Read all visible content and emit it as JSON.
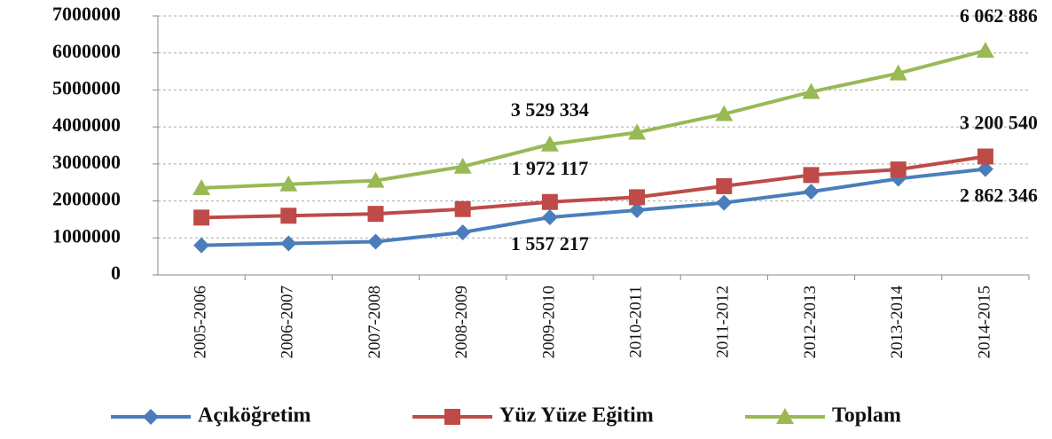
{
  "chart_data": {
    "type": "line",
    "categories": [
      "2005-2006",
      "2006-2007",
      "2007-2008",
      "2008-2009",
      "2009-2010",
      "2010-2011",
      "2011-2012",
      "2012-2013",
      "2013-2014",
      "2014-2015"
    ],
    "series": [
      {
        "name": "Açıköğretim",
        "color": "#4a7ebb",
        "marker": "diamond",
        "values": [
          800000,
          850000,
          900000,
          1150000,
          1557217,
          1750000,
          1950000,
          2250000,
          2600000,
          2862346
        ],
        "value_labels": [
          null,
          null,
          null,
          null,
          "1 557 217",
          null,
          null,
          null,
          null,
          "2 862 346"
        ]
      },
      {
        "name": "Yüz Yüze Eğitim",
        "color": "#be4b48",
        "marker": "square",
        "values": [
          1550000,
          1600000,
          1650000,
          1780000,
          1972117,
          2100000,
          2400000,
          2700000,
          2850000,
          3200540
        ],
        "value_labels": [
          null,
          null,
          null,
          null,
          "1 972 117",
          null,
          null,
          null,
          null,
          "3 200 540"
        ]
      },
      {
        "name": "Toplam",
        "color": "#98b954",
        "marker": "triangle",
        "values": [
          2350000,
          2450000,
          2550000,
          2930000,
          3529334,
          3850000,
          4350000,
          4950000,
          5450000,
          6062886
        ],
        "value_labels": [
          null,
          null,
          null,
          null,
          "3 529 334",
          null,
          null,
          null,
          null,
          "6 062 886"
        ]
      }
    ],
    "ylim": [
      0,
      7000000
    ],
    "yticks": [
      0,
      1000000,
      2000000,
      3000000,
      4000000,
      5000000,
      6000000,
      7000000
    ],
    "grid": true,
    "legend": "bottom"
  }
}
